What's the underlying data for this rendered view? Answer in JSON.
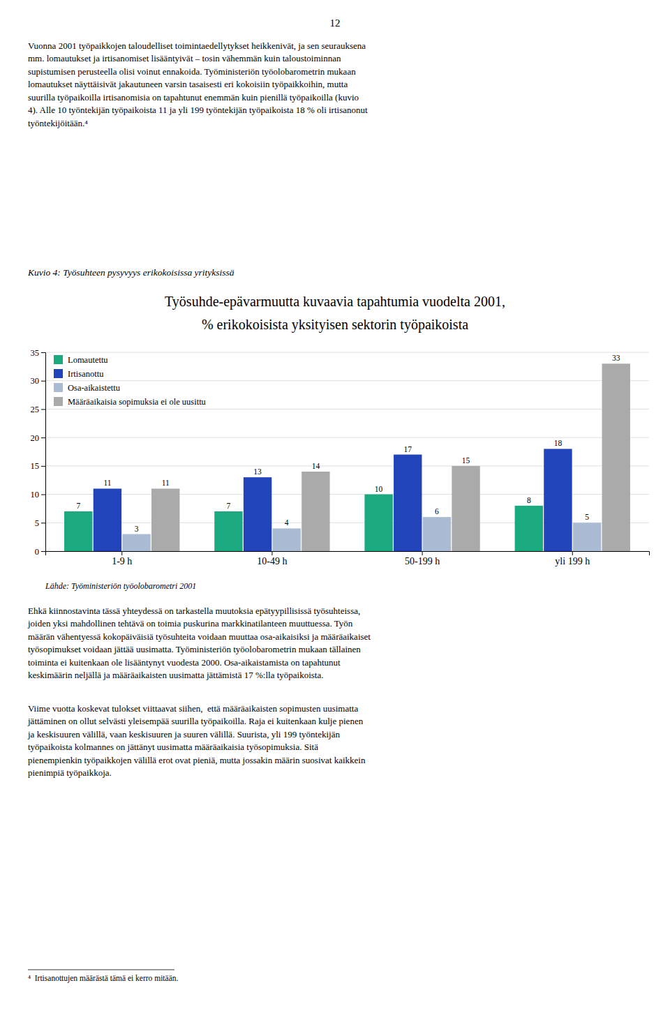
{
  "page_number": "12",
  "text_intro_lines": [
    "Vuonna 2001 työpaikkojen taloudelliset toimintaedellytykset heikkenivät, ja sen seurauksena",
    "mm. lomautukset ja irtisanomiset lisääntyivät – tosin vähemmän kuin taloustoiminnan",
    "supistumisen perusteella olisi voinut ennakoida. Työministeriön työolobarometrin mukaan",
    "lomautukset näyttäisivät jakautuneen varsin tasaisesti eri kokoisiin työpaikkoihin, mutta",
    "suurilla työpaikoilla irtisanomisia on tapahtunut enemmän kuin pienillä työpaikoilla (kuvio",
    "4). Alle 10 työntekijän työpaikoista 11 ja yli 199 työntekijän työpaikoista 18 % oli irtisanonut",
    "työntekijöitään.⁴"
  ],
  "figure_label": "Kuvio 4: Työsuhteen pysyvyys erikokoisissa yrityksissä",
  "chart_data": {
    "type": "bar",
    "title": "Työsuhde-epävarmuutta kuvaavia tapahtumia vuodelta 2001,",
    "subtitle": "% erikokoisista yksityisen sektorin työpaikoista",
    "source": "Lähde: Työministeriön työolobarometri 2001",
    "categories": [
      "1-9 h",
      "10-49 h",
      "50-199 h",
      "yli 199 h"
    ],
    "series": [
      {
        "name": "Lomautettu",
        "color": "#1BAA80",
        "values": [
          7,
          7,
          10,
          8
        ]
      },
      {
        "name": "Irtisanottu",
        "color": "#2244BB",
        "values": [
          11,
          13,
          17,
          18
        ]
      },
      {
        "name": "Osa-aikaistettu",
        "color": "#AABBD4",
        "values": [
          3,
          4,
          6,
          5
        ]
      },
      {
        "name": "Määräaikaisia sopimuksia ei ole uusittu",
        "color": "#AAAAAA",
        "values": [
          11,
          14,
          15,
          33
        ]
      }
    ],
    "ylim": [
      0,
      35
    ],
    "yticks": [
      0,
      5,
      10,
      15,
      20,
      25,
      30,
      35
    ],
    "grid": true,
    "legend": "top-left",
    "data_labels": true
  },
  "text_body1_lines": [
    "Ehkä kiinnostavinta tässä yhteydessä on tarkastella muutoksia epätyypillisissä työsuhteissa,",
    "joiden yksi mahdollinen tehtävä on toimia puskurina markkinatilanteen muuttuessa. Työn",
    "määrän vähentyessä kokopäiväisiä työsuhteita voidaan muuttaa osa-aikaisiksi ja määräaikaiset",
    "työsopimukset voidaan jättää uusimatta. Työministeriön työolobarometrin mukaan tällainen",
    "toiminta ei kuitenkaan ole lisääntynyt vuodesta 2000. Osa-aikaistamista on tapahtunut",
    "keskimäärin neljällä ja määräaikaisten uusimatta jättämistä 17 %:lla työpaikoista."
  ],
  "text_body2_lines": [
    "Viime vuotta koskevat tulokset viittaavat siihen,  että määräaikaisten sopimusten uusimatta",
    "jättäminen on ollut selvästi yleisempää suurilla työpaikoilla. Raja ei kuitenkaan kulje pienen",
    "ja keskisuuren välillä, vaan keskisuuren ja suuren välillä. Suurista, yli 199 työntekijän",
    "työpaikoista kolmannes on jättänyt uusimatta määräaikaisia työsopimuksia. Sitä",
    "pienempienkin työpaikkojen välillä erot ovat pieniä, mutta jossakin määrin suosivat kaikkein",
    "pienimpiä työpaikkoja."
  ],
  "footnote": "⁴  Irtisanottujen määrästä tämä ei kerro mitään."
}
